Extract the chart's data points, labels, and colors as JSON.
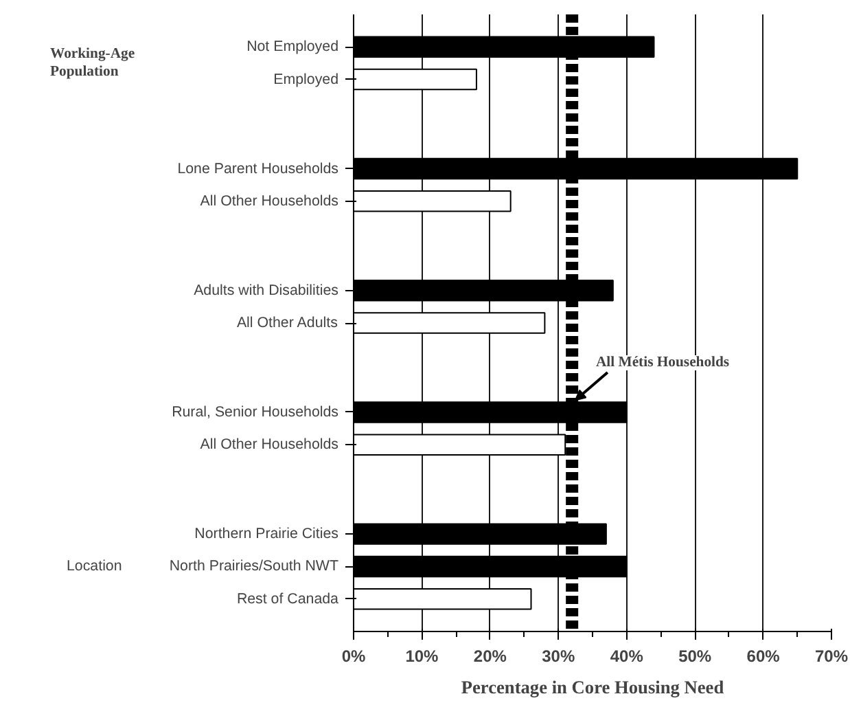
{
  "chart_data": {
    "type": "bar",
    "orientation": "horizontal",
    "categories": [
      "Not Employed",
      "Employed",
      "Lone Parent Households",
      "All Other Households",
      "Adults with Disabilities",
      "All Other Adults",
      "Rural, Senior Households",
      "All Other Households",
      "Northern Prairie Cities",
      "North Prairies/South NWT",
      "Rest of Canada"
    ],
    "values": [
      44,
      18,
      65,
      23,
      38,
      28,
      40,
      31,
      37,
      40,
      26
    ],
    "colors": [
      "#000000",
      "#ffffff",
      "#000000",
      "#ffffff",
      "#000000",
      "#ffffff",
      "#000000",
      "#ffffff",
      "#000000",
      "#000000",
      "#ffffff"
    ],
    "xlabel": "Percentage in Core Housing Need",
    "xlim": [
      0,
      70
    ],
    "xticks": [
      {
        "value": 0,
        "label": "0%"
      },
      {
        "value": 10,
        "label": "10%"
      },
      {
        "value": 20,
        "label": "20%"
      },
      {
        "value": 30,
        "label": "30%"
      },
      {
        "value": 40,
        "label": "40%"
      },
      {
        "value": 50,
        "label": "50%"
      },
      {
        "value": 60,
        "label": "60%"
      },
      {
        "value": 70,
        "label": "70%"
      }
    ],
    "grid": "x",
    "ref_lines": [
      {
        "axis": "x",
        "value": 32,
        "label": "All Métis Households",
        "color": "#000000",
        "line_style": "dashed"
      }
    ],
    "annotations": [
      "Working-Age Population",
      "Location"
    ]
  }
}
